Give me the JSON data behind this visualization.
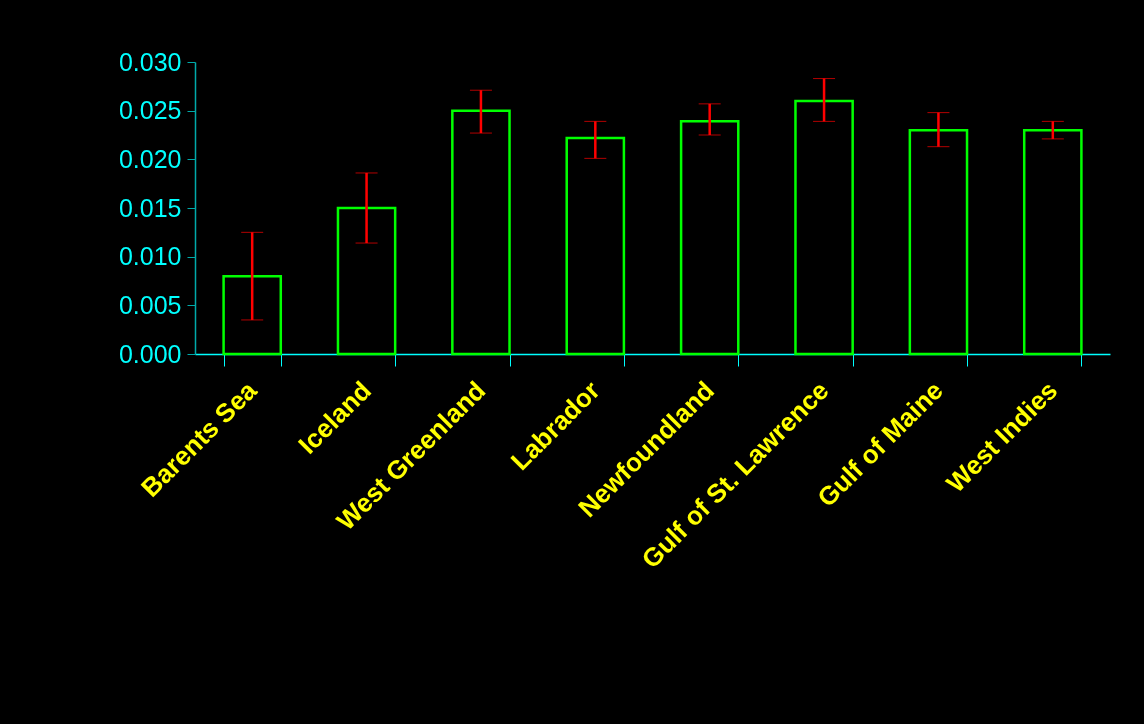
{
  "chart_data": {
    "type": "bar",
    "categories": [
      "Barents Sea",
      "Iceland",
      "West Greenland",
      "Labrador",
      "Newfoundland",
      "Gulf of St. Lawrence",
      "Gulf of Maine",
      "West Indies"
    ],
    "values": [
      0.008,
      0.015,
      0.025,
      0.0222,
      0.0239,
      0.026,
      0.023,
      0.023
    ],
    "errors": [
      [
        0.0035,
        0.0125
      ],
      [
        0.0114,
        0.0186
      ],
      [
        0.0227,
        0.0271
      ],
      [
        0.0201,
        0.0239
      ],
      [
        0.0225,
        0.0257
      ],
      [
        0.0239,
        0.0283
      ],
      [
        0.0213,
        0.0248
      ],
      [
        0.0221,
        0.0239
      ]
    ],
    "color": "#00ff00",
    "ylim": [
      0,
      0.03
    ],
    "yticks": [
      {
        "value": 0,
        "label": "0.000"
      },
      {
        "value": 0.005,
        "label": "0.005"
      },
      {
        "value": 0.01,
        "label": "0.010"
      },
      {
        "value": 0.015,
        "label": "0.015"
      },
      {
        "value": 0.02,
        "label": "0.020"
      },
      {
        "value": 0.025,
        "label": "0.025"
      },
      {
        "value": 0.03,
        "label": "0.030"
      }
    ],
    "grid": false
  }
}
